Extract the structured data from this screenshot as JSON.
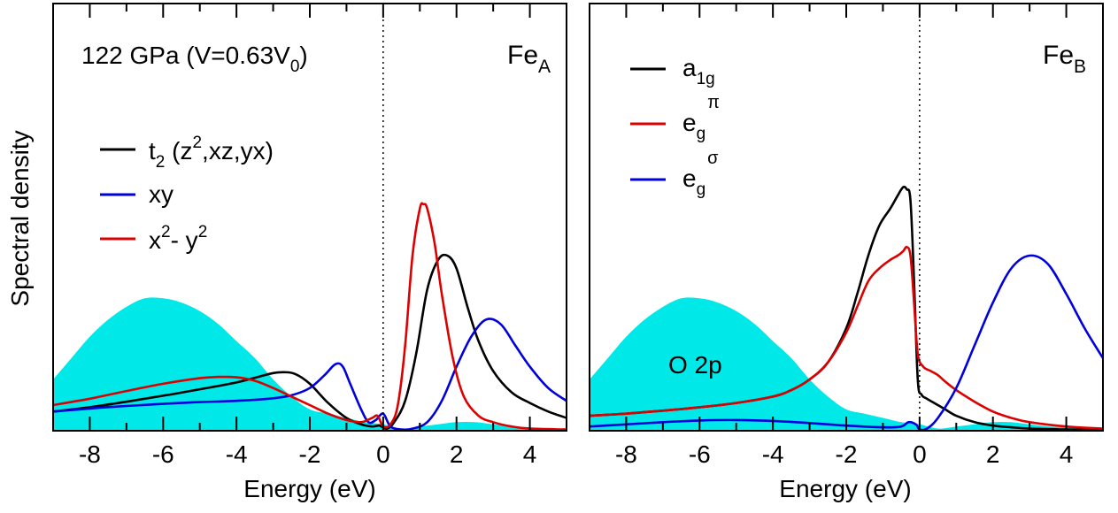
{
  "ylabel": "Spectral density",
  "panels": [
    {
      "xlabel": "Energy (eV)",
      "annotation": {
        "text": "122 GPa (V=0.63V",
        "sub": "0",
        "tail": ")"
      },
      "site": {
        "text": "Fe",
        "sub": "A"
      },
      "xticks": [
        "-8",
        "-6",
        "-4",
        "-2",
        "0",
        "2",
        "4"
      ],
      "legend": [
        {
          "base": "t",
          "sub": "2",
          "rest_pre": " (z",
          "sup": "2",
          "rest_post": ",xz,yx)",
          "color": "#000000"
        },
        {
          "base": "xy",
          "color": "#0000dd"
        },
        {
          "base": "x",
          "sup": "2",
          "rest_pre": "- y",
          "sup2": "2",
          "color": "#dd0000"
        }
      ]
    },
    {
      "xlabel": "Energy (eV)",
      "site": {
        "text": "Fe",
        "sub": "B"
      },
      "fill_label": "O 2p",
      "xticks": [
        "-8",
        "-6",
        "-4",
        "-2",
        "0",
        "2",
        "4"
      ],
      "legend": [
        {
          "base": "a",
          "sub": "1g",
          "color": "#000000"
        },
        {
          "base": "e",
          "sub": "g",
          "sup": "π",
          "color": "#dd0000"
        },
        {
          "base": "e",
          "sub": "g",
          "sup": "σ",
          "color": "#0000dd"
        }
      ]
    }
  ],
  "chart_data": [
    {
      "type": "line",
      "xlim": [
        -9,
        5
      ],
      "ylim": [
        0,
        1
      ],
      "fermi_level": 0,
      "fill": {
        "color": "#00e8e8",
        "x": [
          -9,
          -8.5,
          -8,
          -7.5,
          -7,
          -6.5,
          -6,
          -5.5,
          -5,
          -4.5,
          -4,
          -3.5,
          -3,
          -2.5,
          -2,
          -1.5,
          -1,
          -0.5,
          0,
          0.5,
          1,
          1.5,
          2,
          2.5,
          3,
          3.5,
          4,
          4.5,
          5
        ],
        "y": [
          0.12,
          0.17,
          0.22,
          0.26,
          0.29,
          0.31,
          0.31,
          0.3,
          0.28,
          0.25,
          0.21,
          0.17,
          0.12,
          0.08,
          0.05,
          0.04,
          0.03,
          0.02,
          0.015,
          0.005,
          0.01,
          0.015,
          0.02,
          0.02,
          0.015,
          0.01,
          0.008,
          0.005,
          0.005
        ]
      },
      "series": [
        {
          "name": "t2 (z2,xz,yx)",
          "color": "#000000",
          "x": [
            -9,
            -8,
            -7,
            -6,
            -5,
            -4,
            -3.5,
            -3,
            -2.7,
            -2.4,
            -2,
            -1.5,
            -1,
            -0.6,
            -0.3,
            -0.1,
            0.1,
            0.3,
            0.6,
            0.9,
            1.2,
            1.5,
            1.75,
            2,
            2.3,
            2.6,
            3,
            3.5,
            4,
            4.5,
            5
          ],
          "y": [
            0.045,
            0.055,
            0.068,
            0.082,
            0.097,
            0.113,
            0.124,
            0.135,
            0.137,
            0.133,
            0.11,
            0.065,
            0.03,
            0.015,
            0.01,
            0.012,
            0.005,
            0.02,
            0.07,
            0.18,
            0.33,
            0.4,
            0.41,
            0.38,
            0.29,
            0.21,
            0.14,
            0.09,
            0.065,
            0.045,
            0.03
          ]
        },
        {
          "name": "xy",
          "color": "#0000dd",
          "x": [
            -9,
            -8,
            -7,
            -6,
            -5,
            -4,
            -3,
            -2.5,
            -2,
            -1.6,
            -1.3,
            -1.1,
            -0.9,
            -0.6,
            -0.4,
            -0.2,
            0,
            0.2,
            0.5,
            0.8,
            1.2,
            1.6,
            2,
            2.4,
            2.8,
            3.2,
            3.6,
            4,
            4.5,
            5
          ],
          "y": [
            0.045,
            0.052,
            0.058,
            0.063,
            0.067,
            0.07,
            0.076,
            0.083,
            0.1,
            0.13,
            0.156,
            0.15,
            0.11,
            0.05,
            0.02,
            0.025,
            0.04,
            0.01,
            0.003,
            0.005,
            0.02,
            0.07,
            0.15,
            0.22,
            0.26,
            0.25,
            0.2,
            0.15,
            0.1,
            0.07
          ]
        },
        {
          "name": "x2- y2",
          "color": "#dd0000",
          "x": [
            -9,
            -8,
            -7,
            -6,
            -5,
            -4.5,
            -4,
            -3.5,
            -3,
            -2.5,
            -2,
            -1.5,
            -1,
            -0.6,
            -0.3,
            -0.15,
            0,
            0.2,
            0.4,
            0.6,
            0.8,
            1,
            1.1,
            1.2,
            1.4,
            1.6,
            1.9,
            2.2,
            2.6,
            3,
            3.5,
            4,
            5
          ],
          "y": [
            0.06,
            0.075,
            0.093,
            0.11,
            0.123,
            0.126,
            0.125,
            0.117,
            0.1,
            0.08,
            0.06,
            0.04,
            0.025,
            0.02,
            0.03,
            0.035,
            0.01,
            0.015,
            0.06,
            0.2,
            0.41,
            0.52,
            0.53,
            0.52,
            0.44,
            0.32,
            0.17,
            0.08,
            0.035,
            0.02,
            0.01,
            0.005,
            0.003
          ]
        }
      ]
    },
    {
      "type": "line",
      "xlim": [
        -9,
        5
      ],
      "ylim": [
        0,
        1
      ],
      "fermi_level": 0,
      "fill": {
        "color": "#00e8e8",
        "x": [
          -9,
          -8.5,
          -8,
          -7.5,
          -7,
          -6.5,
          -6,
          -5.5,
          -5,
          -4.5,
          -4,
          -3.5,
          -3,
          -2.5,
          -2,
          -1.5,
          -1,
          -0.5,
          0,
          0.5,
          1,
          1.5,
          2,
          2.5,
          3,
          3.5,
          4,
          4.5,
          5
        ],
        "y": [
          0.12,
          0.17,
          0.22,
          0.26,
          0.29,
          0.31,
          0.31,
          0.3,
          0.28,
          0.25,
          0.21,
          0.17,
          0.12,
          0.08,
          0.05,
          0.04,
          0.03,
          0.02,
          0.015,
          0.005,
          0.01,
          0.015,
          0.02,
          0.02,
          0.015,
          0.01,
          0.008,
          0.005,
          0.005
        ]
      },
      "series": [
        {
          "name": "a1g",
          "color": "#000000",
          "x": [
            -9,
            -8,
            -7,
            -6,
            -5,
            -4,
            -3.5,
            -3,
            -2.5,
            -2,
            -1.7,
            -1.4,
            -1.1,
            -0.8,
            -0.6,
            -0.45,
            -0.35,
            -0.25,
            -0.15,
            -0.05,
            0.05,
            0.2,
            0.4,
            0.7,
            1,
            1.5,
            2,
            2.5,
            3,
            4,
            5
          ],
          "y": [
            0.035,
            0.04,
            0.047,
            0.055,
            0.065,
            0.08,
            0.095,
            0.12,
            0.16,
            0.24,
            0.32,
            0.41,
            0.48,
            0.52,
            0.55,
            0.57,
            0.565,
            0.54,
            0.35,
            0.12,
            0.085,
            0.075,
            0.065,
            0.05,
            0.035,
            0.02,
            0.012,
            0.008,
            0.005,
            0.003,
            0.002
          ]
        },
        {
          "name": "eg π",
          "color": "#dd0000",
          "x": [
            -9,
            -8,
            -7,
            -6,
            -5,
            -4,
            -3.5,
            -3,
            -2.5,
            -2,
            -1.7,
            -1.4,
            -1.1,
            -0.8,
            -0.6,
            -0.45,
            -0.35,
            -0.25,
            -0.15,
            -0.05,
            0.1,
            0.3,
            0.5,
            0.7,
            1,
            1.5,
            2,
            2.5,
            3,
            4,
            5
          ],
          "y": [
            0.035,
            0.04,
            0.047,
            0.055,
            0.065,
            0.08,
            0.095,
            0.12,
            0.16,
            0.23,
            0.29,
            0.35,
            0.38,
            0.4,
            0.41,
            0.42,
            0.43,
            0.41,
            0.3,
            0.18,
            0.15,
            0.14,
            0.13,
            0.115,
            0.095,
            0.068,
            0.045,
            0.03,
            0.02,
            0.01,
            0.005
          ]
        },
        {
          "name": "eg σ",
          "color": "#0000dd",
          "x": [
            -9,
            -8,
            -7,
            -6,
            -5,
            -4,
            -3,
            -2,
            -1,
            -0.5,
            -0.3,
            -0.1,
            0,
            0.2,
            0.5,
            1,
            1.5,
            2,
            2.5,
            3,
            3.5,
            4,
            4.5,
            5
          ],
          "y": [
            0.01,
            0.015,
            0.02,
            0.024,
            0.025,
            0.023,
            0.018,
            0.012,
            0.008,
            0.01,
            0.02,
            0.015,
            0.003,
            0.005,
            0.03,
            0.1,
            0.2,
            0.3,
            0.38,
            0.41,
            0.39,
            0.32,
            0.24,
            0.17
          ]
        }
      ]
    }
  ]
}
